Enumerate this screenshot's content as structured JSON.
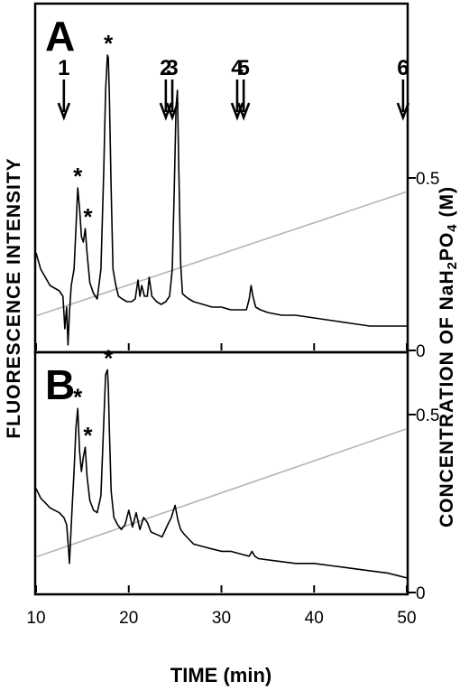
{
  "chart_data": [
    {
      "type": "line",
      "panel": "A",
      "ylabel": "FLUORESCENCE INTENSITY",
      "y2label": "CONCENTRATION OF NaH2PO4 (M)",
      "y2ticks": [
        "0.5",
        "0"
      ],
      "y2lim": [
        0,
        0.65
      ],
      "xlim": [
        10,
        50
      ],
      "markers": [
        {
          "label": "1",
          "x": 13.0
        },
        {
          "label": "2",
          "x": 24.0
        },
        {
          "label": "3",
          "x": 24.7
        },
        {
          "label": "4",
          "x": 31.7
        },
        {
          "label": "5",
          "x": 32.4
        },
        {
          "label": "6",
          "x": 49.6
        }
      ],
      "asterisks": [
        14.5,
        15.3,
        17.8
      ],
      "gradient": {
        "x": [
          10,
          50
        ],
        "y": [
          0.1,
          0.46
        ]
      },
      "series": [
        {
          "x": [
            10.0,
            10.5,
            11.0,
            11.5,
            12.0,
            12.5,
            12.9,
            13.1,
            13.3,
            13.45,
            13.6,
            13.8,
            14.1,
            14.3,
            14.5,
            14.7,
            14.9,
            15.1,
            15.3,
            15.5,
            15.8,
            16.2,
            16.6,
            17.0,
            17.3,
            17.5,
            17.7,
            17.8,
            17.9,
            18.1,
            18.3,
            18.6,
            18.9,
            19.3,
            19.8,
            20.3,
            20.7,
            21.0,
            21.2,
            21.4,
            21.7,
            22.0,
            22.2,
            22.5,
            23.0,
            23.5,
            24.0,
            24.4,
            24.7,
            24.9,
            25.1,
            25.25,
            25.4,
            25.6,
            25.8,
            26.1,
            26.5,
            27.0,
            28.0,
            29.0,
            30.0,
            31.0,
            32.0,
            32.7,
            33.0,
            33.2,
            33.4,
            33.7,
            34.2,
            35.0,
            36.5,
            38.0,
            40.0,
            42.0,
            44.0,
            46.0,
            48.0,
            50.0
          ],
          "y": [
            0.36,
            0.3,
            0.27,
            0.24,
            0.23,
            0.22,
            0.2,
            0.08,
            0.16,
            0.02,
            0.14,
            0.24,
            0.3,
            0.45,
            0.6,
            0.52,
            0.42,
            0.4,
            0.45,
            0.36,
            0.25,
            0.21,
            0.19,
            0.3,
            0.66,
            0.96,
            1.09,
            1.08,
            0.95,
            0.6,
            0.3,
            0.24,
            0.2,
            0.19,
            0.18,
            0.18,
            0.19,
            0.26,
            0.2,
            0.24,
            0.2,
            0.2,
            0.27,
            0.2,
            0.18,
            0.17,
            0.18,
            0.2,
            0.3,
            0.58,
            0.9,
            0.96,
            0.68,
            0.32,
            0.21,
            0.2,
            0.19,
            0.18,
            0.17,
            0.16,
            0.16,
            0.15,
            0.15,
            0.15,
            0.19,
            0.24,
            0.2,
            0.16,
            0.15,
            0.14,
            0.13,
            0.13,
            0.12,
            0.11,
            0.1,
            0.09,
            0.09,
            0.09
          ]
        }
      ]
    },
    {
      "type": "line",
      "panel": "B",
      "xlabel": "TIME (min)",
      "xticks": [
        "10",
        "20",
        "30",
        "40",
        "50"
      ],
      "xlim": [
        10,
        50
      ],
      "y2ticks": [
        "0.5",
        "0"
      ],
      "y2lim": [
        0,
        0.65
      ],
      "asterisks": [
        14.5,
        15.3,
        17.8
      ],
      "gradient": {
        "x": [
          10,
          50
        ],
        "y": [
          0.1,
          0.46
        ]
      },
      "series": [
        {
          "x": [
            10.0,
            10.5,
            11.0,
            11.5,
            12.0,
            12.5,
            13.0,
            13.3,
            13.5,
            13.6,
            13.7,
            13.9,
            14.1,
            14.3,
            14.5,
            14.7,
            14.9,
            15.1,
            15.3,
            15.5,
            15.8,
            16.2,
            16.6,
            17.0,
            17.3,
            17.5,
            17.7,
            17.8,
            17.9,
            18.1,
            18.4,
            18.8,
            19.2,
            19.6,
            20.0,
            20.4,
            20.8,
            21.2,
            21.6,
            22.0,
            22.4,
            23.0,
            23.6,
            24.2,
            24.6,
            25.0,
            25.3,
            25.6,
            26.0,
            26.5,
            27.0,
            28.0,
            29.0,
            30.0,
            31.0,
            32.0,
            33.0,
            33.3,
            33.6,
            34.0,
            36.0,
            38.0,
            40.0,
            42.0,
            44.0,
            46.0,
            48.0,
            49.0,
            50.0
          ],
          "y": [
            0.43,
            0.39,
            0.37,
            0.35,
            0.34,
            0.33,
            0.31,
            0.28,
            0.18,
            0.12,
            0.2,
            0.36,
            0.5,
            0.68,
            0.76,
            0.58,
            0.5,
            0.56,
            0.6,
            0.48,
            0.38,
            0.34,
            0.33,
            0.4,
            0.7,
            0.9,
            0.92,
            0.85,
            0.68,
            0.42,
            0.31,
            0.28,
            0.26,
            0.28,
            0.34,
            0.27,
            0.33,
            0.26,
            0.31,
            0.29,
            0.25,
            0.24,
            0.23,
            0.28,
            0.31,
            0.36,
            0.3,
            0.26,
            0.24,
            0.22,
            0.2,
            0.19,
            0.18,
            0.17,
            0.17,
            0.16,
            0.15,
            0.17,
            0.15,
            0.14,
            0.13,
            0.12,
            0.12,
            0.11,
            0.1,
            0.09,
            0.08,
            0.07,
            0.06
          ]
        }
      ]
    }
  ]
}
